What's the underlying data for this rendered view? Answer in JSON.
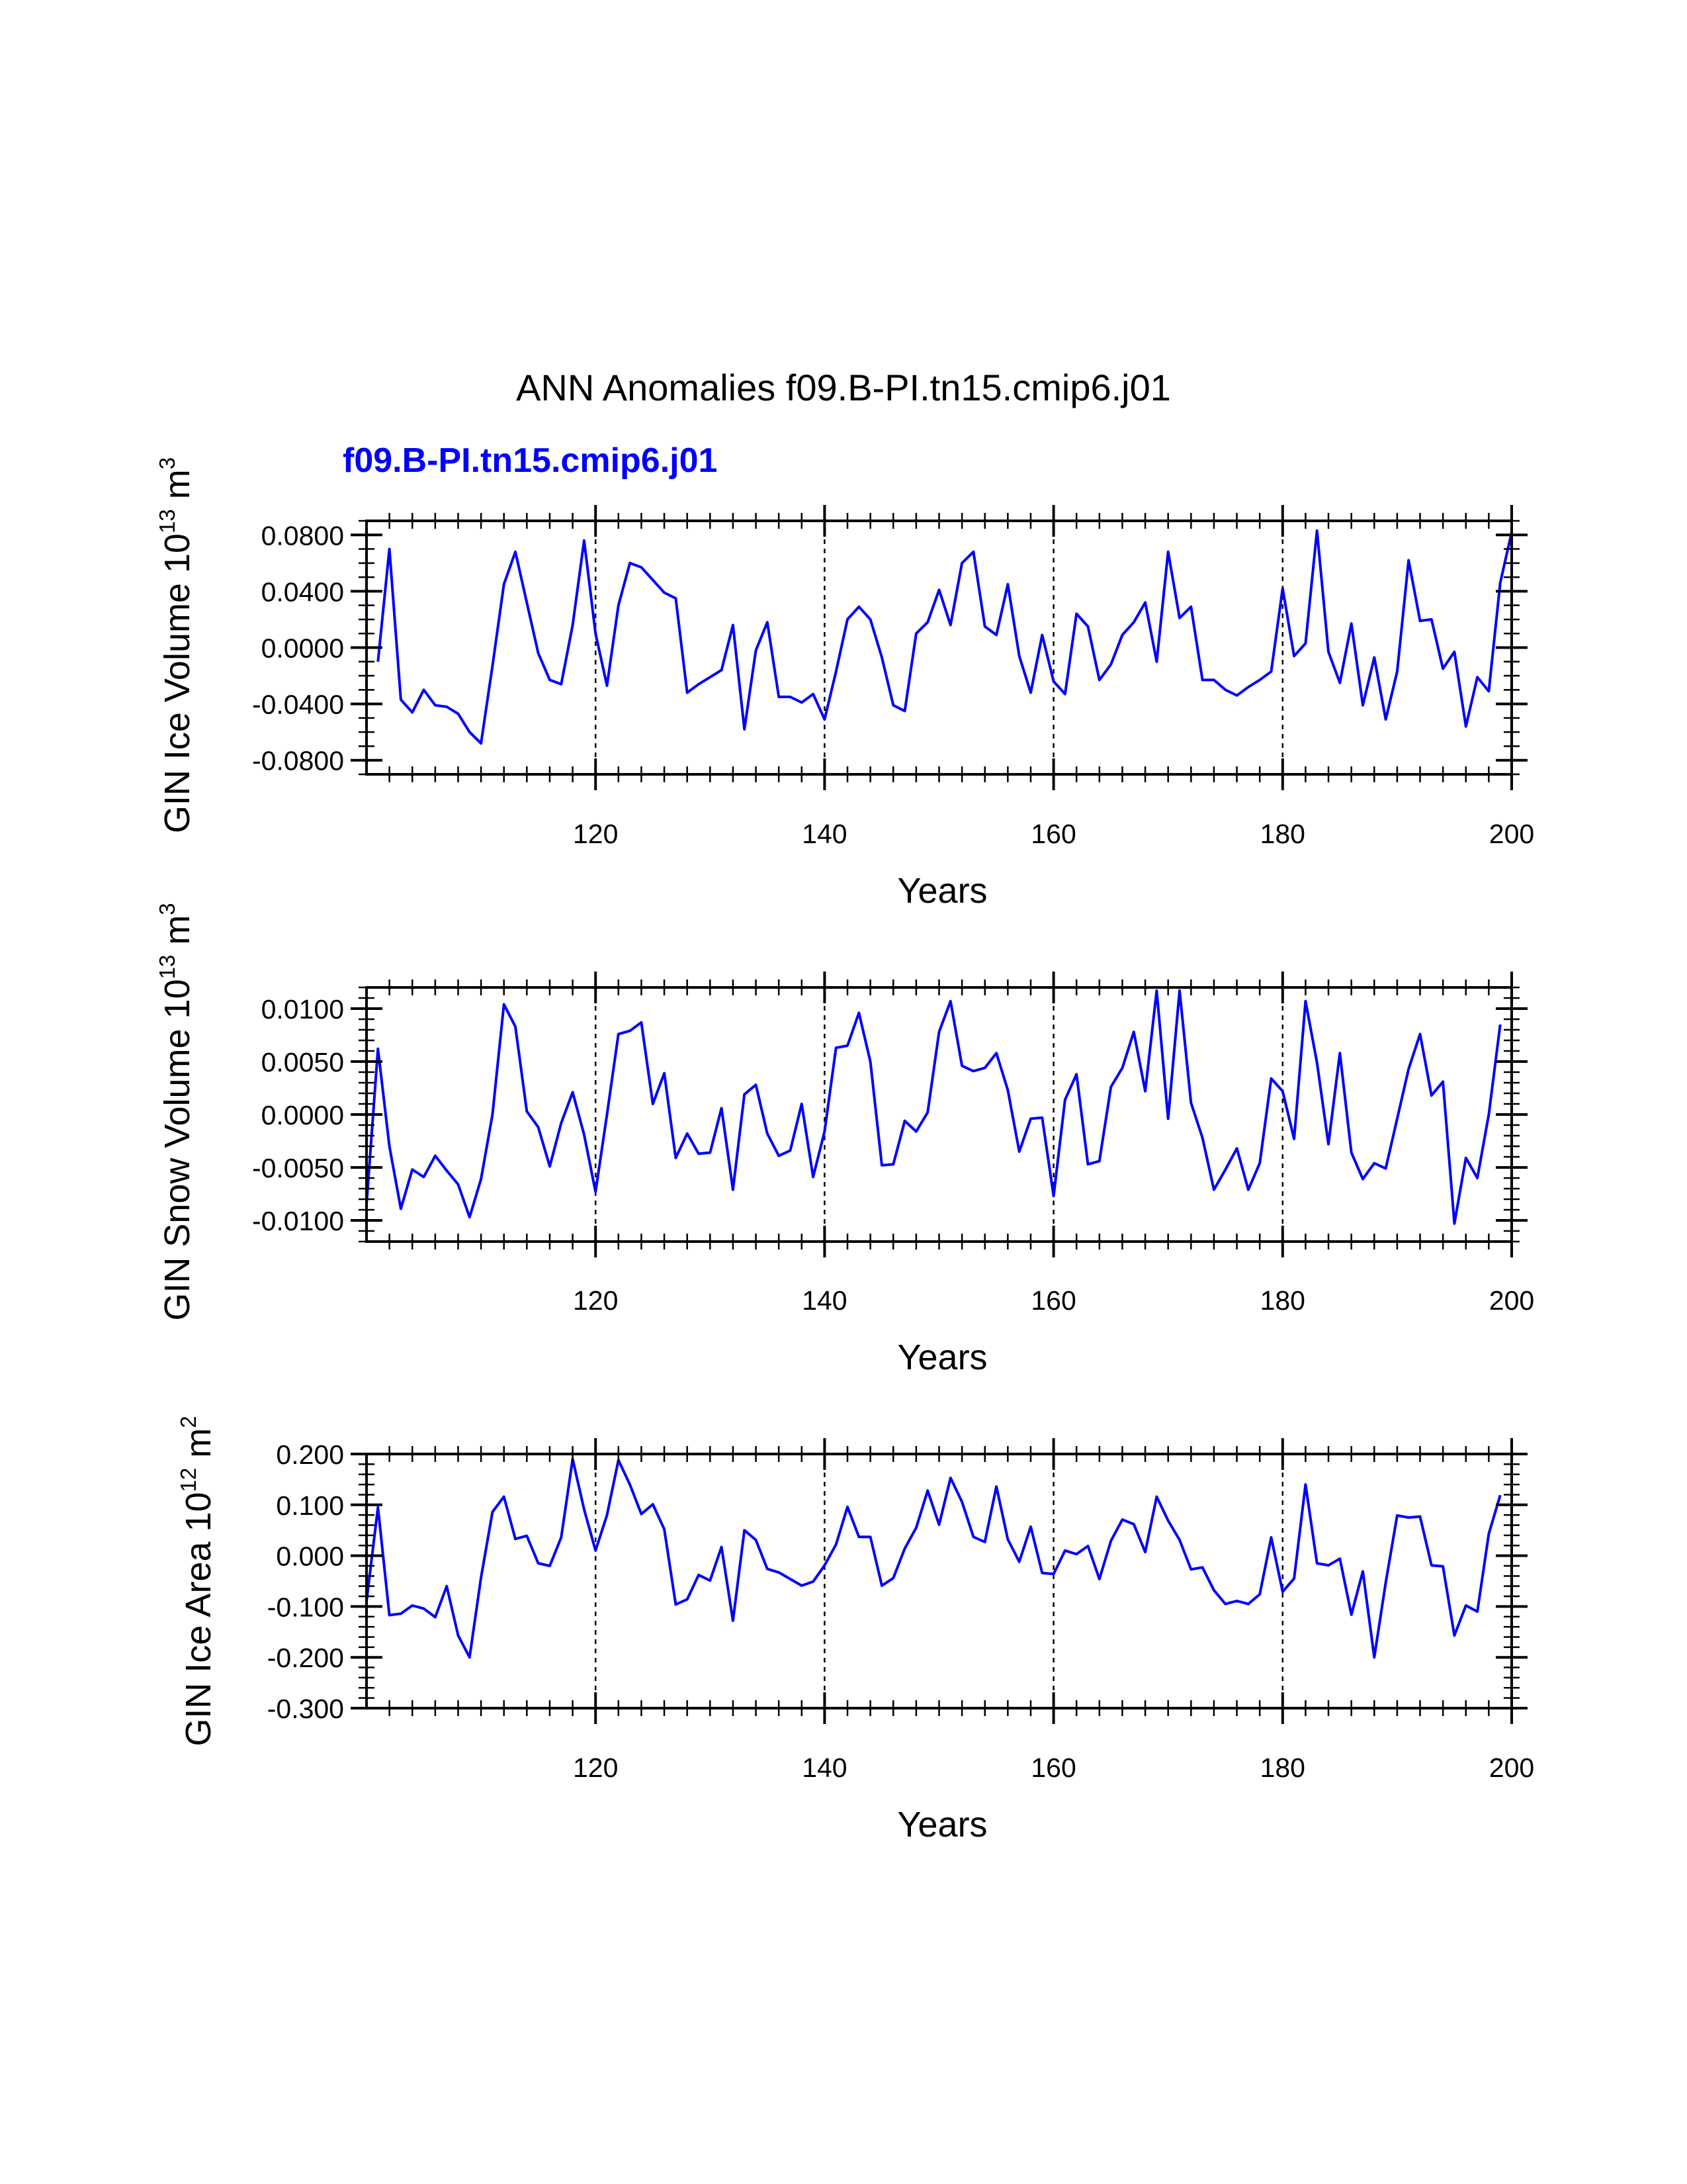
{
  "figure": {
    "title": "ANN Anomalies f09.B-PI.tn15.cmip6.j01",
    "subtitle": "f09.B-PI.tn15.cmip6.j01",
    "line_color": "#0000ff",
    "axis_color": "#000000"
  },
  "chart_data": [
    {
      "type": "line",
      "xlabel": "Years",
      "ylabel": {
        "prefix": "GIN Ice Volume 10",
        "exp": "13",
        "unit": " m",
        "unit_exp": "3"
      },
      "xlim": [
        100,
        200
      ],
      "ylim": [
        -0.09,
        0.09
      ],
      "yticks": [
        -0.08,
        -0.04,
        0.0,
        0.04,
        0.08
      ],
      "ytick_labels": [
        "-0.0800",
        "-0.0400",
        "0.0000",
        "0.0400",
        "0.0800"
      ],
      "yminor": 0.01,
      "xticks": [
        120,
        140,
        160,
        180,
        200
      ],
      "xtick_labels": [
        "120",
        "140",
        "160",
        "180",
        "200"
      ],
      "xminor": 2,
      "vlines": [
        120,
        140,
        160,
        180
      ],
      "x_start": 101,
      "values": [
        -0.01,
        0.07,
        -0.037,
        -0.046,
        -0.03,
        -0.041,
        -0.042,
        -0.047,
        -0.06,
        -0.068,
        -0.013,
        0.045,
        0.068,
        0.032,
        -0.004,
        -0.023,
        -0.026,
        0.016,
        0.076,
        0.01,
        -0.027,
        0.03,
        0.06,
        0.057,
        0.048,
        0.039,
        0.035,
        -0.032,
        -0.026,
        -0.021,
        -0.016,
        0.016,
        -0.058,
        -0.002,
        0.018,
        -0.035,
        -0.035,
        -0.039,
        -0.033,
        -0.051,
        -0.017,
        0.02,
        0.029,
        0.02,
        -0.007,
        -0.041,
        -0.045,
        0.01,
        0.018,
        0.041,
        0.016,
        0.06,
        0.068,
        0.015,
        0.009,
        0.045,
        -0.006,
        -0.032,
        0.009,
        -0.024,
        -0.033,
        0.024,
        0.015,
        -0.023,
        -0.012,
        0.009,
        0.018,
        0.032,
        -0.01,
        0.068,
        0.021,
        0.029,
        -0.023,
        -0.023,
        -0.03,
        -0.034,
        -0.028,
        -0.023,
        -0.017,
        0.042,
        -0.006,
        0.003,
        0.083,
        -0.003,
        -0.025,
        0.017,
        -0.041,
        -0.007,
        -0.051,
        -0.017,
        0.062,
        0.019,
        0.02,
        -0.015,
        -0.003,
        -0.056,
        -0.021,
        -0.031,
        0.046,
        0.082
      ]
    },
    {
      "type": "line",
      "xlabel": "Years",
      "ylabel": {
        "prefix": "GIN Snow Volume 10",
        "exp": "13",
        "unit": " m",
        "unit_exp": "3"
      },
      "xlim": [
        100,
        200
      ],
      "ylim": [
        -0.012,
        0.012
      ],
      "yticks": [
        -0.01,
        -0.005,
        0.0,
        0.005,
        0.01
      ],
      "ytick_labels": [
        "-0.0100",
        "-0.0050",
        "0.0000",
        "0.0050",
        "0.0100"
      ],
      "yminor": 0.001,
      "xticks": [
        120,
        140,
        160,
        180,
        200
      ],
      "xtick_labels": [
        "120",
        "140",
        "160",
        "180",
        "200"
      ],
      "xminor": 2,
      "vlines": [
        120,
        140,
        160,
        180
      ],
      "x_start": 100,
      "values": [
        -0.0085,
        0.0062,
        -0.003,
        -0.0089,
        -0.0052,
        -0.0059,
        -0.0039,
        -0.0053,
        -0.0066,
        -0.0097,
        -0.0061,
        0.0,
        0.0104,
        0.0083,
        0.0003,
        -0.0012,
        -0.0049,
        -0.0008,
        0.0021,
        -0.0019,
        -0.0073,
        0.0,
        0.0076,
        0.0079,
        0.0087,
        0.001,
        0.0039,
        -0.0041,
        -0.0018,
        -0.0037,
        -0.0036,
        0.0006,
        -0.0071,
        0.0019,
        0.0028,
        -0.0018,
        -0.0039,
        -0.0034,
        0.001,
        -0.0059,
        -0.0016,
        0.0063,
        0.0065,
        0.0096,
        0.005,
        -0.0048,
        -0.0047,
        -0.0006,
        -0.0016,
        0.0002,
        0.0078,
        0.0107,
        0.0046,
        0.0041,
        0.0044,
        0.0058,
        0.0023,
        -0.0035,
        -0.0004,
        -0.0003,
        -0.0077,
        0.0014,
        0.0038,
        -0.0047,
        -0.0044,
        0.0026,
        0.0044,
        0.0078,
        0.0022,
        0.0117,
        -0.0004,
        0.0117,
        0.0011,
        -0.0022,
        -0.0071,
        -0.0052,
        -0.0032,
        -0.0071,
        -0.0046,
        0.0034,
        0.0022,
        -0.0023,
        0.0107,
        0.0049,
        -0.0028,
        0.0058,
        -0.0036,
        -0.0061,
        -0.0046,
        -0.0051,
        -0.0004,
        0.0043,
        0.0076,
        0.0018,
        0.0031,
        -0.0103,
        -0.0041,
        -0.006,
        0.0,
        0.0085
      ]
    },
    {
      "type": "line",
      "xlabel": "Years",
      "ylabel": {
        "prefix": "GIN Ice Area 10",
        "exp": "12",
        "unit": " m",
        "unit_exp": "2"
      },
      "xlim": [
        100,
        200
      ],
      "ylim": [
        -0.3,
        0.2
      ],
      "yticks": [
        -0.3,
        -0.2,
        -0.1,
        0.0,
        0.1,
        0.2
      ],
      "ytick_labels": [
        "-0.300",
        "-0.200",
        "-0.100",
        "0.000",
        "0.100",
        "0.200"
      ],
      "yminor": 0.02,
      "xticks": [
        120,
        140,
        160,
        180,
        200
      ],
      "xtick_labels": [
        "120",
        "140",
        "160",
        "180",
        "200"
      ],
      "xminor": 2,
      "vlines": [
        120,
        140,
        160,
        180
      ],
      "x_start": 100,
      "values": [
        -0.09,
        0.095,
        -0.117,
        -0.114,
        -0.098,
        -0.104,
        -0.121,
        -0.06,
        -0.157,
        -0.2,
        -0.043,
        0.086,
        0.116,
        0.033,
        0.039,
        -0.015,
        -0.02,
        0.036,
        0.19,
        0.091,
        0.01,
        0.08,
        0.188,
        0.14,
        0.082,
        0.101,
        0.052,
        -0.096,
        -0.086,
        -0.038,
        -0.049,
        0.017,
        -0.128,
        0.05,
        0.031,
        -0.026,
        -0.033,
        -0.046,
        -0.059,
        -0.051,
        -0.019,
        0.022,
        0.096,
        0.037,
        0.037,
        -0.059,
        -0.044,
        0.014,
        0.055,
        0.128,
        0.061,
        0.153,
        0.106,
        0.037,
        0.027,
        0.136,
        0.032,
        -0.012,
        0.057,
        -0.034,
        -0.036,
        0.01,
        0.003,
        0.019,
        -0.046,
        0.029,
        0.071,
        0.062,
        0.007,
        0.116,
        0.069,
        0.031,
        -0.027,
        -0.023,
        -0.068,
        -0.095,
        -0.089,
        -0.095,
        -0.076,
        0.036,
        -0.071,
        -0.045,
        0.14,
        -0.015,
        -0.019,
        -0.006,
        -0.116,
        -0.031,
        -0.2,
        -0.053,
        0.079,
        0.075,
        0.077,
        -0.019,
        -0.021,
        -0.157,
        -0.098,
        -0.11,
        0.043,
        0.119
      ]
    }
  ]
}
